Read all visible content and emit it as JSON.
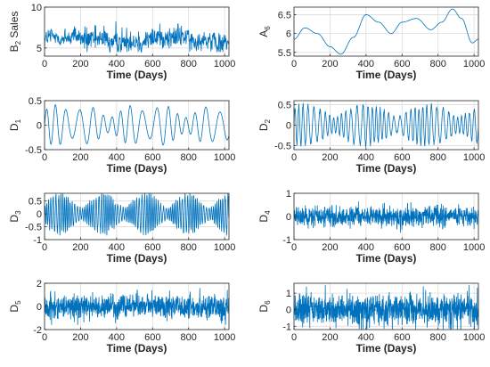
{
  "style": {
    "line_color": "#0072BD",
    "grid_color": "#dcdcdc",
    "axis_color": "#262626",
    "grid": true
  },
  "chart_data": [
    {
      "id": "b2",
      "type": "line",
      "signal": "noisy-level",
      "ylabel": {
        "base": "B",
        "sub": "2",
        "rest": " Sales"
      },
      "xlabel": "Time (Days)",
      "xlim": [
        0,
        1024
      ],
      "xticks": [
        0,
        200,
        400,
        600,
        800,
        1000
      ],
      "ylim": [
        4,
        10
      ],
      "yticks": [
        5,
        10
      ],
      "series": [
        {
          "x_range": [
            0,
            1024
          ],
          "y_mean": 6.0,
          "y_typical_range": [
            4.5,
            9.5
          ]
        }
      ]
    },
    {
      "id": "a6",
      "type": "line",
      "signal": "smooth-trend",
      "ylabel": {
        "base": "A",
        "sub": "6",
        "rest": ""
      },
      "xlabel": "Time (Days)",
      "xlim": [
        0,
        1024
      ],
      "xticks": [
        0,
        200,
        400,
        600,
        800,
        1000
      ],
      "ylim": [
        5.4,
        6.7
      ],
      "yticks": [
        5.5,
        6,
        6.5
      ],
      "series": [
        {
          "x": [
            0,
            60,
            130,
            200,
            260,
            330,
            400,
            470,
            540,
            600,
            680,
            760,
            820,
            880,
            930,
            990,
            1024
          ],
          "y": [
            5.85,
            6.15,
            6.0,
            5.65,
            5.45,
            5.9,
            6.5,
            6.3,
            6.0,
            6.3,
            6.4,
            6.1,
            6.3,
            6.65,
            6.4,
            5.75,
            5.85
          ]
        }
      ]
    },
    {
      "id": "d1",
      "type": "line",
      "signal": "oscillation-slow",
      "ylabel": {
        "base": "D",
        "sub": "1",
        "rest": ""
      },
      "xlabel": "Time (Days)",
      "xlim": [
        0,
        1024
      ],
      "xticks": [
        0,
        200,
        400,
        600,
        800,
        1000
      ],
      "ylim": [
        -0.5,
        0.5
      ],
      "yticks": [
        -0.5,
        0,
        0.5
      ],
      "series": [
        {
          "x_range": [
            0,
            1024
          ],
          "amplitude_max": 0.45
        }
      ]
    },
    {
      "id": "d2",
      "type": "line",
      "signal": "oscillation-medium",
      "ylabel": {
        "base": "D",
        "sub": "2",
        "rest": ""
      },
      "xlabel": "Time (Days)",
      "xlim": [
        0,
        1024
      ],
      "xticks": [
        0,
        200,
        400,
        600,
        800,
        1000
      ],
      "ylim": [
        -0.6,
        0.6
      ],
      "yticks": [
        -0.5,
        0,
        0.5
      ],
      "series": [
        {
          "x_range": [
            0,
            1024
          ],
          "amplitude_max": 0.55
        }
      ]
    },
    {
      "id": "d3",
      "type": "line",
      "signal": "oscillation-fast",
      "ylabel": {
        "base": "D",
        "sub": "3",
        "rest": ""
      },
      "xlabel": "Time (Days)",
      "xlim": [
        0,
        1024
      ],
      "xticks": [
        0,
        200,
        400,
        600,
        800,
        1000
      ],
      "ylim": [
        -1,
        0.8
      ],
      "yticks": [
        -1,
        -0.5,
        0,
        0.5
      ],
      "series": [
        {
          "x_range": [
            0,
            1024
          ],
          "amplitude_max": 0.9
        }
      ]
    },
    {
      "id": "d4",
      "type": "line",
      "signal": "noise-high-frequency",
      "ylabel": {
        "base": "D",
        "sub": "4",
        "rest": ""
      },
      "xlabel": "Time (Days)",
      "xlim": [
        0,
        1024
      ],
      "xticks": [
        0,
        200,
        400,
        600,
        800,
        1000
      ],
      "ylim": [
        -1,
        1
      ],
      "yticks": [
        -1,
        0,
        1
      ],
      "series": [
        {
          "x_range": [
            0,
            1024
          ],
          "amplitude_max": 0.7
        }
      ]
    },
    {
      "id": "d5",
      "type": "line",
      "signal": "noise-high-frequency",
      "ylabel": {
        "base": "D",
        "sub": "5",
        "rest": ""
      },
      "xlabel": "Time (Days)",
      "xlim": [
        0,
        1024
      ],
      "xticks": [
        0,
        200,
        400,
        600,
        800,
        1000
      ],
      "ylim": [
        -2,
        2
      ],
      "yticks": [
        -2,
        0,
        2
      ],
      "series": [
        {
          "x_range": [
            0,
            1024
          ],
          "amplitude_max": 1.6
        }
      ]
    },
    {
      "id": "d6",
      "type": "line",
      "signal": "noise-high-frequency",
      "ylabel": {
        "base": "D",
        "sub": "6",
        "rest": ""
      },
      "xlabel": "Time (Days)",
      "xlim": [
        0,
        1024
      ],
      "xticks": [
        0,
        200,
        400,
        600,
        800,
        1000
      ],
      "ylim": [
        -1.2,
        1.6
      ],
      "yticks": [
        -1,
        0,
        1
      ],
      "series": [
        {
          "x_range": [
            0,
            1024
          ],
          "amplitude_max": 1.5
        }
      ]
    }
  ]
}
